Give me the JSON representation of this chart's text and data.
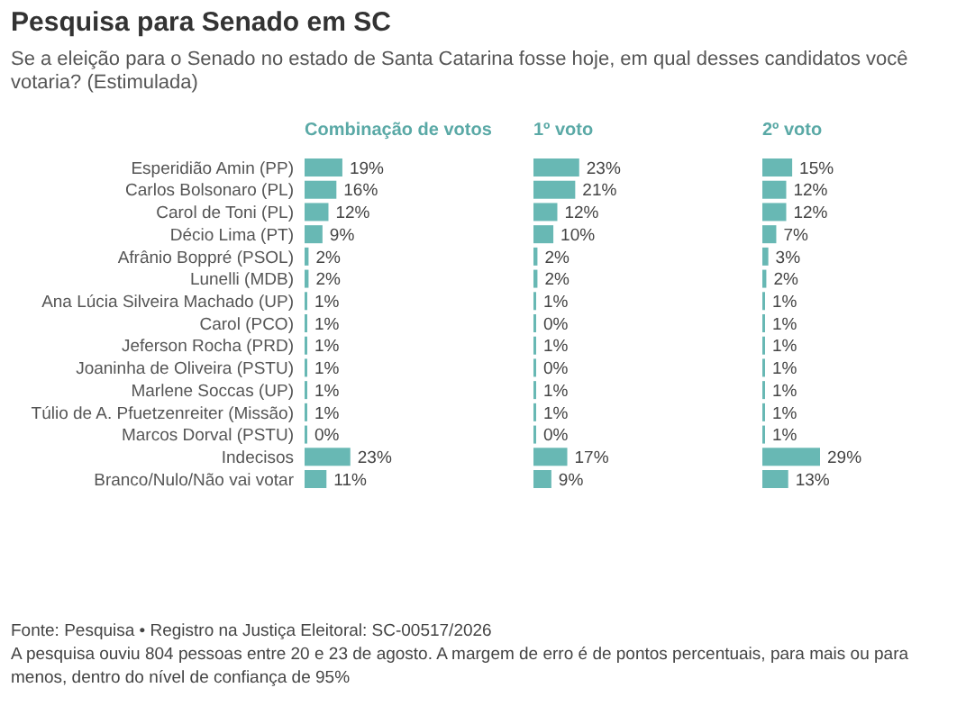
{
  "chart_data": [
    {
      "type": "other",
      "title": "Pesquisa para Senado em SC",
      "subtitle": "Se a eleição para o Senado no estado de Santa Catarina fosse hoje, em qual desses candidatos você votaria? (Estimulada)",
      "annotations": [
        "Fonte: Pesquisa • Registro na Justiça Eleitoral: SC-00517/2026",
        "A pesquisa ouviu 804 pessoas entre 20 e 23 de agosto. A margem de erro é de pontos percentuais, para mais ou para menos, dentro do nível de confiança de 95%"
      ]
    },
    {
      "type": "bar",
      "orientation": "horizontal",
      "title": "Combinação de votos",
      "tick_labels": "y",
      "color": "#68b8b4",
      "categories": [
        "Esperidião Amin (PP)",
        "Carlos Bolsonaro (PL)",
        "Carol de Toni (PL)",
        "Décio Lima (PT)",
        "Afrânio Boppré (PSOL)",
        "Lunelli (MDB)",
        "Ana Lúcia Silveira Machado (UP)",
        "Carol (PCO)",
        "Jeferson Rocha (PRD)",
        "Joaninha de Oliveira (PSTU)",
        "Marlene Soccas (UP)",
        "Túlio de A. Pfuetzenreiter (Missão)",
        "Marcos Dorval (PSTU)",
        "Indecisos",
        "Branco/Nulo/Não vai votar"
      ],
      "values": [
        19,
        16,
        12,
        9,
        2,
        2,
        1,
        1,
        1,
        1,
        1,
        1,
        0,
        23,
        11
      ],
      "value_labels": [
        "19%",
        "16%",
        "12%",
        "9%",
        "2%",
        "2%",
        "1%",
        "1%",
        "1%",
        "1%",
        "1%",
        "1%",
        "0%",
        "23%",
        "11%"
      ]
    },
    {
      "type": "bar",
      "orientation": "horizontal",
      "title": "1º voto",
      "tick_labels": false,
      "color": "#68b8b4",
      "categories": [
        null,
        null,
        null,
        null,
        null,
        null,
        null,
        null,
        null,
        null,
        null,
        null,
        null,
        null,
        null
      ],
      "values": [
        23,
        21,
        12,
        10,
        2,
        2,
        1,
        0,
        1,
        0,
        1,
        1,
        0,
        17,
        9
      ],
      "value_labels": [
        "23%",
        "21%",
        "12%",
        "10%",
        "2%",
        "2%",
        "1%",
        "0%",
        "1%",
        "0%",
        "1%",
        "1%",
        "0%",
        "17%",
        "9%"
      ]
    },
    {
      "type": "bar",
      "orientation": "horizontal",
      "title": "2º voto",
      "tick_labels": false,
      "color": "#68b8b4",
      "categories": [
        null,
        null,
        null,
        null,
        null,
        null,
        null,
        null,
        null,
        null,
        null,
        null,
        null,
        null,
        null
      ],
      "values": [
        15,
        12,
        12,
        7,
        3,
        2,
        1,
        1,
        1,
        1,
        1,
        1,
        1,
        29,
        13
      ],
      "value_labels": [
        "15%",
        "12%",
        "12%",
        "7%",
        "3%",
        "2%",
        "1%",
        "1%",
        "1%",
        "1%",
        "1%",
        "1%",
        "1%",
        "29%",
        "13%"
      ]
    }
  ]
}
